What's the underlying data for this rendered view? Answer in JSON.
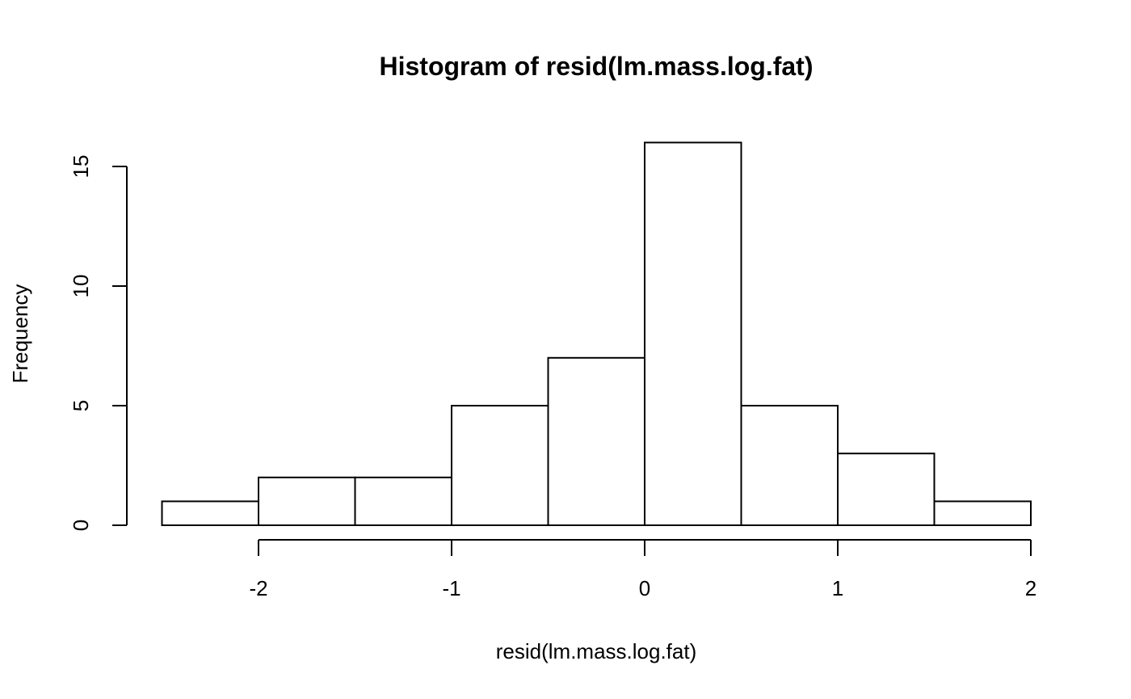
{
  "chart_data": {
    "type": "bar",
    "title": "Histogram of resid(lm.mass.log.fat)",
    "xlabel": "resid(lm.mass.log.fat)",
    "ylabel": "Frequency",
    "bins": [
      {
        "x0": -2.5,
        "x1": -2.0,
        "count": 1
      },
      {
        "x0": -2.0,
        "x1": -1.5,
        "count": 2
      },
      {
        "x0": -1.5,
        "x1": -1.0,
        "count": 2
      },
      {
        "x0": -1.0,
        "x1": -0.5,
        "count": 5
      },
      {
        "x0": -0.5,
        "x1": 0.0,
        "count": 7
      },
      {
        "x0": 0.0,
        "x1": 0.5,
        "count": 16
      },
      {
        "x0": 0.5,
        "x1": 1.0,
        "count": 5
      },
      {
        "x0": 1.0,
        "x1": 1.5,
        "count": 3
      },
      {
        "x0": 1.5,
        "x1": 2.0,
        "count": 1
      }
    ],
    "x_ticks": [
      -2,
      -1,
      0,
      1,
      2
    ],
    "y_ticks": [
      0,
      5,
      10,
      15
    ],
    "x_tick_labels": [
      "-2",
      "-1",
      "0",
      "1",
      "2"
    ],
    "y_tick_labels": [
      "0",
      "5",
      "10",
      "15"
    ],
    "xlim": [
      -2.5,
      2.0
    ],
    "ylim": [
      0,
      16
    ],
    "grid": false,
    "bar_fill": "#ffffff",
    "bar_stroke": "#000000"
  }
}
